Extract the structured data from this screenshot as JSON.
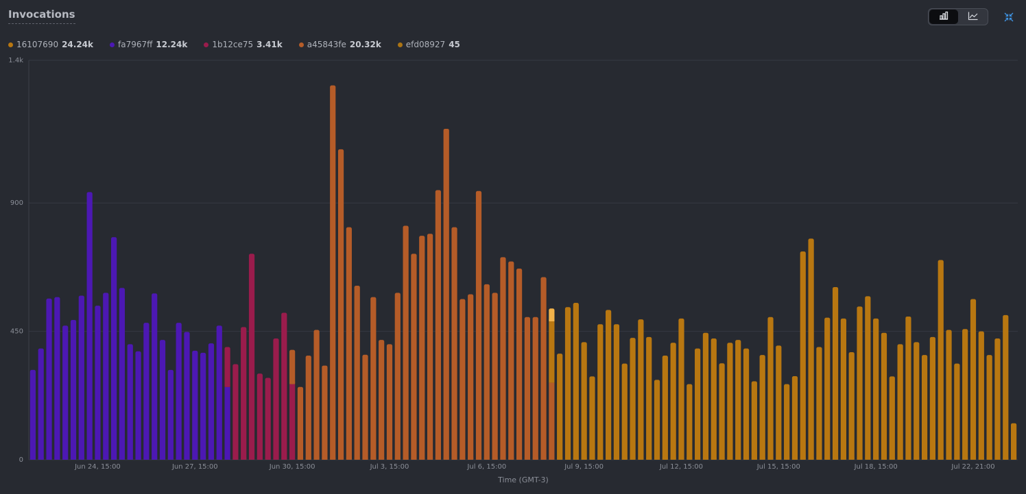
{
  "title": "Invocations",
  "view_toggle": {
    "bar_icon": "bar-chart-icon",
    "line_icon": "line-chart-icon",
    "active": "bar"
  },
  "collapse_icon": "collapse-arrows-icon",
  "legend": [
    {
      "name": "16107690",
      "value": "24.24k",
      "color": "#b87711"
    },
    {
      "name": "fa7967ff",
      "value": "12.24k",
      "color": "#4c18b3"
    },
    {
      "name": "1b12ce75",
      "value": "3.41k",
      "color": "#9a1c4c"
    },
    {
      "name": "a45843fe",
      "value": "20.32k",
      "color": "#b55c28"
    },
    {
      "name": "efd08927",
      "value": "45",
      "color": "#ab7414"
    }
  ],
  "chart_data": {
    "type": "bar",
    "title": "Invocations",
    "xlabel": "Time (GMT-3)",
    "ylabel": "",
    "ylim": [
      0,
      1400
    ],
    "yticks": [
      "0",
      "450",
      "900",
      "1.4k"
    ],
    "xticks": [
      "Jun 24, 15:00",
      "Jun 27, 15:00",
      "Jun 30, 15:00",
      "Jul 3, 15:00",
      "Jul 6, 15:00",
      "Jul 9, 15:00",
      "Jul 12, 15:00",
      "Jul 15, 15:00",
      "Jul 18, 15:00",
      "Jul 22, 21:00"
    ],
    "grid": true,
    "legend_placement": "top-left",
    "stacked": true,
    "highlight_color": "#f1b24a",
    "series": [
      {
        "name": "fa7967ff",
        "color": "#4c18b3",
        "values": [
          315,
          390,
          565,
          570,
          470,
          490,
          575,
          938,
          540,
          585,
          780,
          602,
          405,
          380,
          480,
          583,
          420,
          315,
          480,
          448,
          382,
          375,
          408,
          470,
          255,
          0,
          0,
          0,
          0,
          0,
          0,
          0,
          0,
          0,
          0,
          0,
          0,
          0,
          0,
          0,
          0,
          0,
          0,
          0,
          0,
          0,
          0,
          0,
          0,
          0,
          0,
          0,
          0,
          0,
          0,
          0,
          0,
          0,
          0,
          0,
          0,
          0,
          0,
          0,
          0,
          0,
          0,
          0,
          0,
          0,
          0,
          0,
          0,
          0,
          0,
          0,
          0,
          0,
          0,
          0,
          0,
          0,
          0,
          0,
          0,
          0,
          0,
          0,
          0,
          0,
          0,
          0,
          0,
          0,
          0,
          0,
          0,
          0,
          0,
          0,
          0,
          0,
          0,
          0,
          0,
          0,
          0,
          0,
          0,
          0,
          0,
          0,
          0,
          0,
          0,
          0,
          0,
          0,
          0,
          0,
          0,
          0
        ]
      },
      {
        "name": "1b12ce75",
        "color": "#9a1c4c",
        "values": [
          0,
          0,
          0,
          0,
          0,
          0,
          0,
          0,
          0,
          0,
          0,
          0,
          0,
          0,
          0,
          0,
          0,
          0,
          0,
          0,
          0,
          0,
          0,
          0,
          140,
          335,
          465,
          722,
          302,
          287,
          425,
          515,
          265,
          0,
          0,
          0,
          0,
          0,
          0,
          0,
          0,
          0,
          0,
          0,
          0,
          0,
          0,
          0,
          0,
          0,
          0,
          0,
          0,
          0,
          0,
          0,
          0,
          0,
          0,
          0,
          0,
          0,
          0,
          0,
          0,
          0,
          0,
          0,
          0,
          0,
          0,
          0,
          0,
          0,
          0,
          0,
          0,
          0,
          0,
          0,
          0,
          0,
          0,
          0,
          0,
          0,
          0,
          0,
          0,
          0,
          0,
          0,
          0,
          0,
          0,
          0,
          0,
          0,
          0,
          0,
          0,
          0,
          0,
          0,
          0,
          0,
          0,
          0,
          0,
          0,
          0,
          0,
          0,
          0,
          0,
          0,
          0,
          0,
          0,
          0,
          0,
          0
        ]
      },
      {
        "name": "a45843fe",
        "color": "#b55c28",
        "values": [
          0,
          0,
          0,
          0,
          0,
          0,
          0,
          0,
          0,
          0,
          0,
          0,
          0,
          0,
          0,
          0,
          0,
          0,
          0,
          0,
          0,
          0,
          0,
          0,
          0,
          0,
          0,
          0,
          0,
          0,
          0,
          0,
          120,
          255,
          365,
          455,
          330,
          1312,
          1088,
          815,
          610,
          368,
          570,
          420,
          405,
          585,
          820,
          722,
          785,
          792,
          945,
          1160,
          815,
          563,
          580,
          942,
          615,
          585,
          710,
          695,
          670,
          500,
          500,
          640,
          270,
          0,
          0,
          0,
          0,
          0,
          0,
          0,
          0,
          0,
          0,
          0,
          0,
          0,
          0,
          0,
          0,
          0,
          0,
          0,
          0,
          0,
          0,
          0,
          0,
          0,
          0,
          0,
          0,
          0,
          0,
          0,
          0,
          0,
          0,
          0,
          0,
          0,
          0,
          0,
          0,
          0,
          0,
          0,
          0,
          0,
          0,
          0,
          0,
          0,
          0,
          0,
          0,
          0,
          0,
          0
        ]
      },
      {
        "name": "16107690",
        "color": "#b87711",
        "values": [
          0,
          0,
          0,
          0,
          0,
          0,
          0,
          0,
          0,
          0,
          0,
          0,
          0,
          0,
          0,
          0,
          0,
          0,
          0,
          0,
          0,
          0,
          0,
          0,
          0,
          0,
          0,
          0,
          0,
          0,
          0,
          0,
          0,
          0,
          0,
          0,
          0,
          0,
          0,
          0,
          0,
          0,
          0,
          0,
          0,
          0,
          0,
          0,
          0,
          0,
          0,
          0,
          0,
          0,
          0,
          0,
          0,
          0,
          0,
          0,
          0,
          0,
          0,
          0,
          215,
          372,
          535,
          550,
          412,
          292,
          475,
          525,
          475,
          337,
          427,
          492,
          430,
          280,
          365,
          410,
          495,
          265,
          390,
          445,
          425,
          338,
          410,
          420,
          390,
          275,
          367,
          500,
          400,
          265,
          293,
          730,
          775,
          395,
          498,
          605,
          495,
          377,
          537,
          573,
          495,
          445,
          292,
          405,
          502,
          412,
          367,
          430,
          700,
          455,
          337,
          458,
          563,
          450,
          367,
          425,
          507,
          128
        ]
      },
      {
        "name": "efd08927",
        "color": "#ab7414",
        "values": [
          0,
          0,
          0,
          0,
          0,
          0,
          0,
          0,
          0,
          0,
          0,
          0,
          0,
          0,
          0,
          0,
          0,
          0,
          0,
          0,
          0,
          0,
          0,
          0,
          0,
          0,
          0,
          0,
          0,
          0,
          0,
          0,
          0,
          0,
          0,
          0,
          0,
          0,
          0,
          0,
          0,
          0,
          0,
          0,
          0,
          0,
          0,
          0,
          0,
          0,
          0,
          0,
          0,
          0,
          0,
          0,
          0,
          0,
          0,
          0,
          0,
          0,
          0,
          0,
          45,
          0,
          0,
          0,
          0,
          0,
          0,
          0,
          0,
          0,
          0,
          0,
          0,
          0,
          0,
          0,
          0,
          0,
          0,
          0,
          0,
          0,
          0,
          0,
          0,
          0,
          0,
          0,
          0,
          0,
          0,
          0,
          0,
          0,
          0,
          0,
          0,
          0,
          0,
          0,
          0,
          0,
          0,
          0,
          0,
          0,
          0,
          0,
          0,
          0,
          0,
          0,
          0,
          0,
          0,
          0,
          0,
          0
        ]
      }
    ]
  }
}
